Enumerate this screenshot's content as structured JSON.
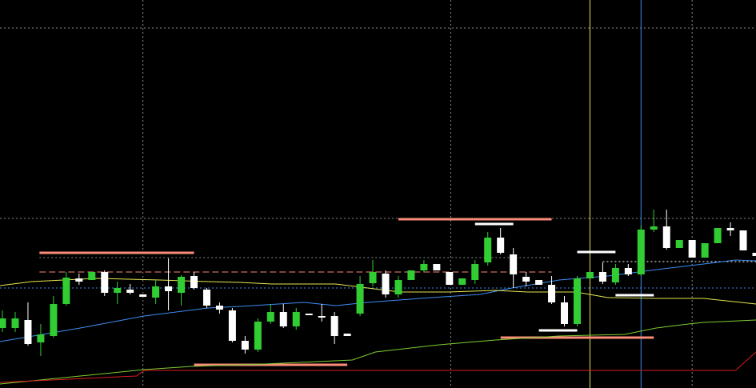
{
  "chart_data": {
    "type": "candlestick",
    "xlim": [
      -0.19,
      59
    ],
    "ylim": [
      0,
      485
    ],
    "up_color": "#32cd32",
    "down_color": "#ffffff",
    "grid_color": "#8c8c8c",
    "grid_y": [
      450,
      212
    ],
    "grid_x": [
      11.0,
      35.1,
      54.0
    ],
    "open": [
      75,
      75,
      85,
      57,
      65,
      105,
      137,
      135,
      145,
      119,
      123,
      117,
      113,
      127,
      119,
      140,
      123,
      103,
      97,
      59,
      48,
      83,
      95,
      77,
      93,
      90,
      90,
      68,
      93,
      131,
      143,
      117,
      135,
      147,
      155,
      145,
      129,
      135,
      157,
      188,
      167,
      139,
      135,
      129,
      107,
      80,
      137,
      145,
      132,
      150,
      142,
      198,
      202,
      175,
      185,
      163,
      181,
      200,
      197,
      169
    ],
    "high": [
      97,
      95,
      107,
      80,
      115,
      145,
      143,
      145,
      147,
      133,
      130,
      117,
      135,
      162,
      141,
      145,
      125,
      107,
      100,
      65,
      87,
      105,
      105,
      100,
      93,
      105,
      95,
      68,
      140,
      160,
      147,
      140,
      147,
      160,
      155,
      145,
      137,
      160,
      195,
      200,
      175,
      145,
      135,
      140,
      115,
      140,
      145,
      157,
      155,
      155,
      203,
      223,
      223,
      185,
      185,
      181,
      200,
      207,
      197,
      169
    ],
    "low": [
      70,
      70,
      53,
      40,
      63,
      103,
      129,
      135,
      115,
      105,
      117,
      114,
      105,
      97,
      103,
      123,
      100,
      93,
      57,
      43,
      45,
      80,
      75,
      73,
      91,
      83,
      55,
      65,
      90,
      127,
      113,
      113,
      135,
      145,
      147,
      129,
      129,
      130,
      153,
      167,
      125,
      127,
      129,
      105,
      77,
      77,
      137,
      130,
      129,
      140,
      140,
      195,
      173,
      175,
      163,
      163,
      181,
      190,
      172,
      165
    ],
    "close": [
      87,
      87,
      55,
      67,
      105,
      138,
      133,
      145,
      119,
      125,
      119,
      114,
      127,
      121,
      139,
      125,
      103,
      98,
      59,
      48,
      83,
      95,
      77,
      95,
      91,
      88,
      65,
      65,
      130,
      145,
      117,
      135,
      147,
      155,
      147,
      129,
      137,
      155,
      188,
      169,
      142,
      133,
      129,
      107,
      80,
      137,
      145,
      133,
      150,
      142,
      198,
      202,
      175,
      185,
      163,
      181,
      200,
      197,
      172,
      165
    ],
    "lines": [
      {
        "color": "#3c8cf0",
        "x": [
          -0.19,
          6.1,
          11.1,
          16.1,
          18.6,
          23.6,
          26.1,
          28.6,
          33.6,
          37.4,
          39.9,
          43.6,
          47.4,
          51.2,
          54.9,
          57.4,
          59
        ],
        "values": [
          58,
          75,
          90,
          100,
          102,
          107,
          103,
          107,
          113,
          117,
          125,
          135,
          140,
          148,
          155,
          160,
          159
        ]
      },
      {
        "color": "#e6e650",
        "x": [
          -0.19,
          2.3,
          7.3,
          12.3,
          16.1,
          18.6,
          21.1,
          26.1,
          28.6,
          31.1,
          34.9,
          38.6,
          41.1,
          44.9,
          47.4,
          51.2,
          54.9,
          59
        ],
        "values": [
          128,
          133,
          137,
          135,
          133,
          132,
          130,
          130,
          125,
          120,
          120,
          122,
          120,
          120,
          113,
          112,
          112,
          105
        ]
      },
      {
        "color": "#7ccd32",
        "x": [
          -0.19,
          11.1,
          14.8,
          20.5,
          27.4,
          29.2,
          33.6,
          34.9,
          38.6,
          43.6,
          48.7,
          51.2,
          53.7,
          54.9,
          59
        ],
        "values": [
          5,
          23,
          27,
          30,
          35,
          45,
          53,
          55,
          60,
          65,
          67,
          75,
          80,
          82,
          85
        ]
      },
      {
        "color": "#dc1e1e",
        "x": [
          -0.19,
          10.5,
          11.1,
          57.4,
          59
        ],
        "values": [
          7,
          15,
          22,
          22,
          45
        ]
      }
    ],
    "levels": [
      {
        "color": "#fa8c78",
        "style": "solid",
        "width": 3,
        "x": [
          2.9,
          15
        ],
        "value": 169
      },
      {
        "color": "#fa8c78",
        "style": "solid",
        "width": 3,
        "x": [
          31,
          43
        ],
        "value": 211
      },
      {
        "color": "#fa8c78",
        "style": "solid",
        "width": 3,
        "x": [
          15,
          27
        ],
        "value": 29
      },
      {
        "color": "#fa8c78",
        "style": "solid",
        "width": 3,
        "x": [
          39,
          51
        ],
        "value": 63
      },
      {
        "color": "#ffffff",
        "style": "solid",
        "width": 3,
        "x": [
          37,
          40
        ],
        "value": 205
      },
      {
        "color": "#ffffff",
        "style": "solid",
        "width": 3,
        "x": [
          45,
          48
        ],
        "value": 170
      },
      {
        "color": "#ffffff",
        "style": "solid",
        "width": 3,
        "x": [
          48,
          51
        ],
        "value": 116
      },
      {
        "color": "#ffffff",
        "style": "solid",
        "width": 3,
        "x": [
          42,
          45
        ],
        "value": 72
      },
      {
        "color": "#ffffff",
        "style": "dotted",
        "width": 1,
        "x": [
          47,
          59
        ],
        "value": 158
      },
      {
        "color": "#fa8c78",
        "style": "dashed",
        "width": 1,
        "x": [
          2.9,
          43
        ],
        "value": 145
      },
      {
        "color": "#8c8c8c",
        "style": "dotted",
        "width": 1,
        "x": [
          2.9,
          43
        ],
        "value": 163
      },
      {
        "color": "#3c8cf0",
        "style": "dotted",
        "width": 1,
        "x": [
          -0.19,
          59
        ],
        "value": 125
      }
    ],
    "vlines": [
      {
        "color": "#e6e650",
        "x": 46.0
      },
      {
        "color": "#3c8cf0",
        "x": 50.0
      }
    ]
  }
}
